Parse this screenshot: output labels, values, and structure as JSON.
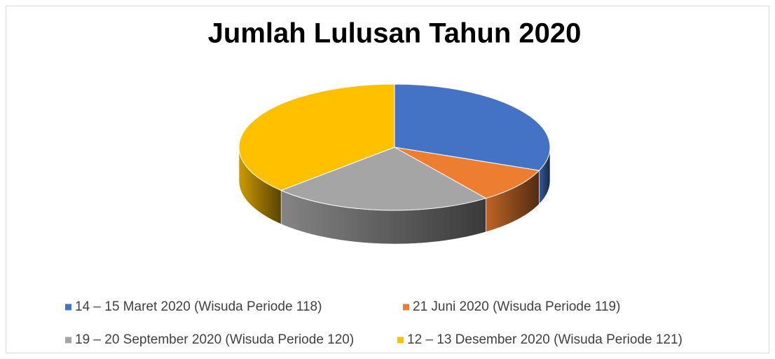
{
  "chart_data": {
    "type": "pie",
    "title": "Jumlah Lulusan Tahun 2020",
    "categories": [
      "14 – 15 Maret 2020 (Wisuda Periode 118)",
      "21 Juni 2020 (Wisuda Periode 119)",
      "19 – 20 September 2020 (Wisuda Periode 120)",
      "12 – 13  Desember 2020 (Wisuda Periode 121)"
    ],
    "values": [
      31,
      9,
      23,
      37
    ],
    "colors": [
      "#4472c4",
      "#ed7d31",
      "#a5a5a5",
      "#ffc000"
    ],
    "legend": "bottom"
  }
}
